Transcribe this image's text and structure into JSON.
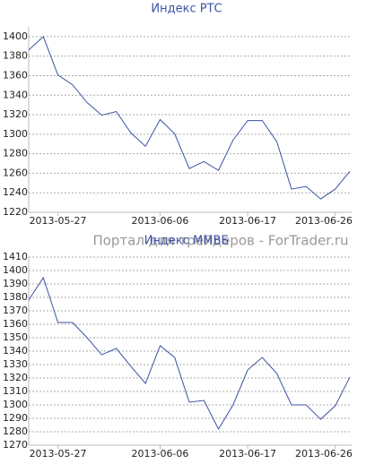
{
  "chart_data": [
    {
      "type": "line",
      "title": "Индекс РТС",
      "categories": [
        null,
        null,
        "2013-05-27",
        null,
        null,
        null,
        null,
        null,
        null,
        "2013-06-06",
        null,
        null,
        null,
        null,
        null,
        "2013-06-17",
        null,
        null,
        null,
        null,
        null,
        "2013-06-26",
        null
      ],
      "series": [
        {
          "color": "#3b52a3",
          "values": [
            1386.3,
            1400,
            1360.7,
            1350.7,
            1332.4,
            1319.6,
            1323.2,
            1301.3,
            1287.6,
            1315,
            1300.4,
            1264.8,
            1272,
            1263,
            1294,
            1314,
            1314,
            1292.2,
            1243.8,
            1246.5,
            1233.7,
            1243.8,
            1262
          ]
        }
      ],
      "ylim": [
        1220,
        1410
      ],
      "yticks": [
        1220,
        1240,
        1260,
        1280,
        1300,
        1320,
        1340,
        1360,
        1380,
        1400
      ],
      "grid": true
    },
    {
      "type": "line",
      "title": "Индекс ММВБ",
      "categories": [
        null,
        null,
        "2013-05-27",
        null,
        null,
        null,
        null,
        null,
        null,
        "2013-06-06",
        null,
        null,
        null,
        null,
        null,
        "2013-06-17",
        null,
        null,
        null,
        null,
        null,
        "2013-06-26",
        null
      ],
      "series": [
        {
          "color": "#3b52a3",
          "values": [
            1378,
            1394.7,
            1361.3,
            1361.3,
            1350,
            1337.3,
            1342,
            1328.7,
            1316,
            1344,
            1335.3,
            1302,
            1303.3,
            1282,
            1300,
            1326,
            1335.3,
            1323.3,
            1300,
            1300,
            1289.3,
            1299.3,
            1320.7
          ]
        }
      ],
      "ylim": [
        1270,
        1410
      ],
      "yticks": [
        1270,
        1280,
        1290,
        1300,
        1310,
        1320,
        1330,
        1340,
        1350,
        1360,
        1370,
        1380,
        1390,
        1400,
        1410
      ],
      "grid": true
    }
  ],
  "watermark": "Портал для трейдеров - ForTrader.ru"
}
